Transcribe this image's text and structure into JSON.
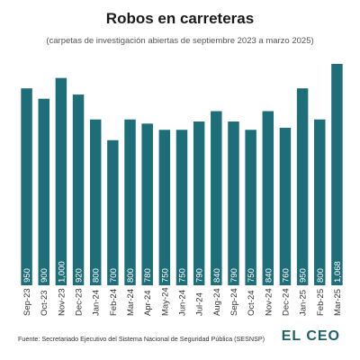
{
  "header": {
    "title": "Robos en carreteras",
    "subtitle": "(carpetas de investigación abiertas de septiembre 2023 a marzo 2025)"
  },
  "footer": {
    "source": "Fuente: Secretariado Ejecutivo del Sistema Nacional de Seguridad Pública (SESNSP)",
    "logo": "EL CEO"
  },
  "colors": {
    "bar": "#1d6e78",
    "bar_label": "#ffffff",
    "tick_label": "#333333"
  },
  "chart_data": {
    "type": "bar",
    "title": "Robos en carreteras",
    "subtitle": "(carpetas de investigación abiertas de septiembre 2023 a marzo 2025)",
    "categories": [
      "Sep-23",
      "Oct-23",
      "Nov-23",
      "Dec-23",
      "Jan-24",
      "Feb-24",
      "Mar-24",
      "Apr-24",
      "May-24",
      "Jun-24",
      "Jul-24",
      "Aug-24",
      "Sep-24",
      "Oct-24",
      "Nov-24",
      "Dec-24",
      "Jan-25",
      "Feb-25",
      "Mar-25"
    ],
    "values": [
      950,
      900,
      1000,
      920,
      800,
      700,
      800,
      780,
      750,
      750,
      790,
      840,
      790,
      750,
      840,
      760,
      950,
      800,
      1068
    ],
    "data_labels": [
      "950",
      "900",
      "1,000",
      "920",
      "800",
      "700",
      "800",
      "780",
      "750",
      "750",
      "790",
      "840",
      "790",
      "750",
      "840",
      "760",
      "950",
      "800",
      "1,068"
    ],
    "xlabel": "",
    "ylabel": "",
    "ylim": [
      0,
      1068
    ],
    "grid": false,
    "legend": "none"
  }
}
